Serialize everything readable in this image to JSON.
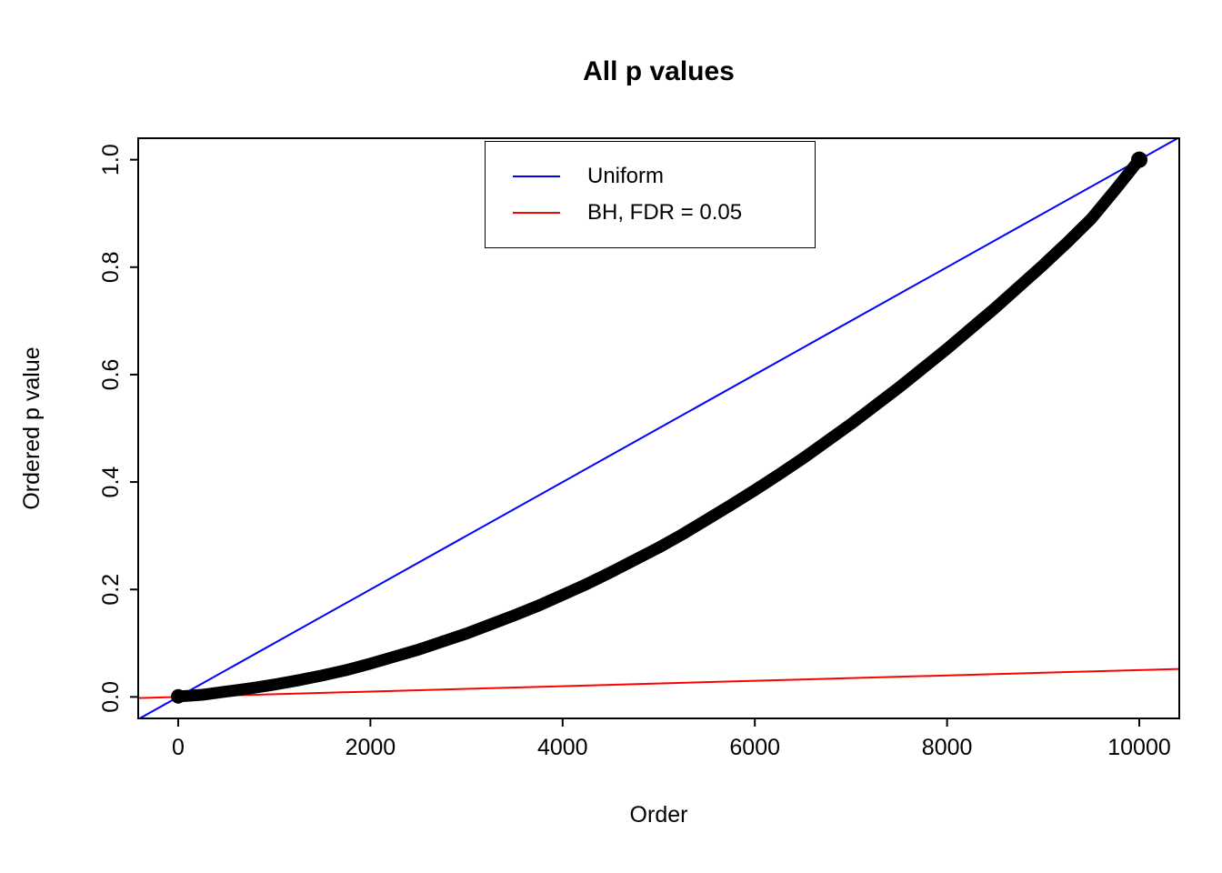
{
  "figure": {
    "background": "#ffffff"
  },
  "chart_data": {
    "type": "scatter",
    "title": "All p values",
    "xlabel": "Order",
    "ylabel": "Ordered p value",
    "xlim": [
      -416,
      10416
    ],
    "ylim": [
      -0.04,
      1.04
    ],
    "x_ticks": [
      0,
      2000,
      4000,
      6000,
      8000,
      10000
    ],
    "y_tick_labels": [
      "0.0",
      "0.2",
      "0.4",
      "0.6",
      "0.8",
      "1.0"
    ],
    "grid": false,
    "axis_color": "#000000",
    "legend": {
      "position": "top-center",
      "entries": [
        {
          "label": "Uniform",
          "color": "#0000FF"
        },
        {
          "label": "BH, FDR = 0.05",
          "color": "#FF0000"
        }
      ]
    },
    "series": [
      {
        "name": "Uniform",
        "type": "line",
        "color": "#0000FF",
        "intercept": 0,
        "slope": 0.0001
      },
      {
        "name": "BH, FDR = 0.05",
        "type": "line",
        "color": "#FF0000",
        "intercept": 0,
        "slope": 5e-06
      },
      {
        "name": "Ordered p values",
        "type": "points",
        "color": "#000000",
        "x": [
          1,
          100,
          250,
          500,
          750,
          1000,
          1250,
          1500,
          1750,
          2000,
          2250,
          2500,
          2750,
          3000,
          3250,
          3500,
          3750,
          4000,
          4250,
          4500,
          4750,
          5000,
          5250,
          5500,
          5750,
          6000,
          6250,
          6500,
          6750,
          7000,
          7250,
          7500,
          7750,
          8000,
          8250,
          8500,
          8750,
          9000,
          9250,
          9500,
          9750,
          10000
        ],
        "y": [
          0.001,
          0.002,
          0.004,
          0.01,
          0.016,
          0.023,
          0.031,
          0.04,
          0.05,
          0.062,
          0.075,
          0.088,
          0.103,
          0.118,
          0.135,
          0.152,
          0.17,
          0.19,
          0.21,
          0.232,
          0.255,
          0.278,
          0.303,
          0.33,
          0.357,
          0.385,
          0.414,
          0.444,
          0.476,
          0.508,
          0.542,
          0.576,
          0.612,
          0.648,
          0.686,
          0.724,
          0.764,
          0.804,
          0.846,
          0.89,
          0.944,
          1.0
        ]
      }
    ]
  }
}
